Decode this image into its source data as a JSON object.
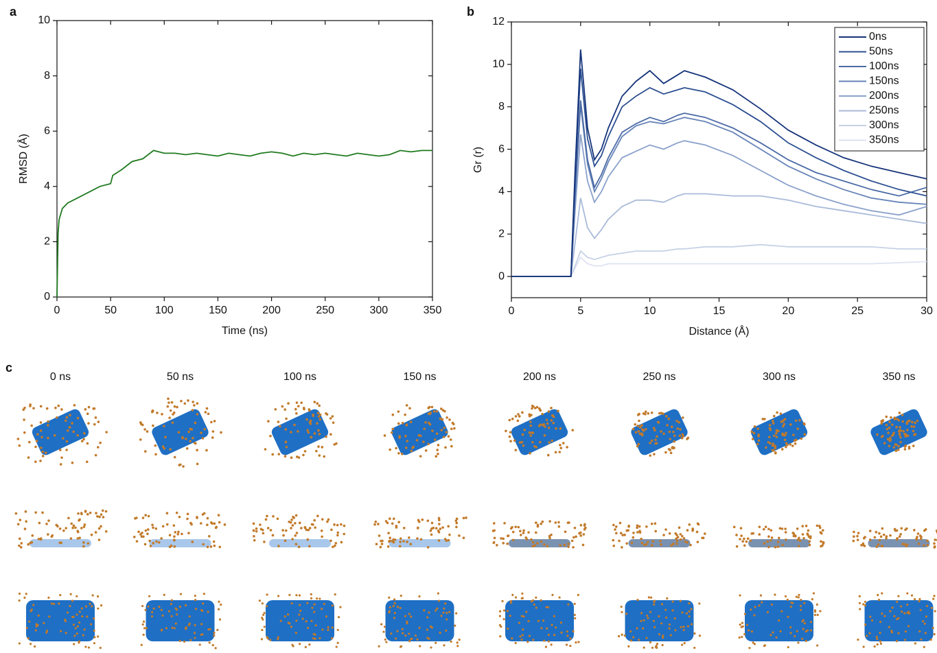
{
  "chart_data": [
    {
      "type": "line",
      "panel_label": "a",
      "x_label": "Time (ns)",
      "y_label": "RMSD (Å)",
      "x": [
        0,
        1,
        2,
        5,
        10,
        20,
        30,
        40,
        50,
        52,
        60,
        70,
        80,
        90,
        100,
        110,
        120,
        130,
        140,
        150,
        160,
        170,
        180,
        190,
        200,
        210,
        220,
        230,
        240,
        250,
        260,
        270,
        280,
        290,
        300,
        310,
        320,
        330,
        340,
        350
      ],
      "values": [
        0,
        2.3,
        2.8,
        3.2,
        3.4,
        3.6,
        3.8,
        4.0,
        4.1,
        4.4,
        4.6,
        4.9,
        5.0,
        5.3,
        5.2,
        5.2,
        5.15,
        5.2,
        5.15,
        5.1,
        5.2,
        5.15,
        5.1,
        5.2,
        5.25,
        5.2,
        5.1,
        5.2,
        5.15,
        5.2,
        5.15,
        5.1,
        5.2,
        5.15,
        5.1,
        5.15,
        5.3,
        5.25,
        5.3,
        5.3
      ],
      "color": "#1f7a1f",
      "xlim": [
        0,
        350
      ],
      "ylim": [
        0,
        10
      ],
      "xticks": [
        0,
        50,
        100,
        150,
        200,
        250,
        300,
        350
      ],
      "yticks": [
        0,
        2,
        4,
        6,
        8,
        10
      ]
    },
    {
      "type": "line",
      "panel_label": "b",
      "x_label": "Distance (Å)",
      "y_label": "Gr (r)",
      "legend": "upper right",
      "x": [
        0,
        4,
        4.3,
        4.6,
        5,
        5.5,
        6,
        6.5,
        7,
        8,
        9,
        10,
        11,
        12,
        12.5,
        14,
        16,
        18,
        20,
        22,
        24,
        26,
        28,
        30
      ],
      "series": [
        {
          "name": "0ns",
          "color": "#15337a",
          "values": [
            0,
            0,
            0,
            5,
            10.7,
            7,
            5.5,
            6,
            7,
            8.5,
            9.2,
            9.7,
            9.1,
            9.5,
            9.7,
            9.4,
            8.8,
            7.9,
            6.9,
            6.2,
            5.6,
            5.2,
            4.9,
            4.6
          ]
        },
        {
          "name": "50ns",
          "color": "#2c4f91",
          "values": [
            0,
            0,
            0,
            4.6,
            9.8,
            6.5,
            5.2,
            5.7,
            6.6,
            8,
            8.5,
            8.9,
            8.6,
            8.8,
            8.9,
            8.7,
            8.1,
            7.3,
            6.3,
            5.6,
            5,
            4.5,
            4.1,
            3.8
          ]
        },
        {
          "name": "100ns",
          "color": "#4a6aa6",
          "values": [
            0,
            0,
            0,
            3.9,
            8.3,
            5.5,
            4.2,
            4.8,
            5.6,
            6.8,
            7.2,
            7.5,
            7.3,
            7.6,
            7.7,
            7.5,
            7,
            6.3,
            5.5,
            4.9,
            4.5,
            4.1,
            3.8,
            4.2
          ]
        },
        {
          "name": "150ns",
          "color": "#6683b8",
          "values": [
            0,
            0,
            0,
            3.8,
            8.1,
            5.3,
            4,
            4.6,
            5.4,
            6.6,
            7.1,
            7.3,
            7.2,
            7.4,
            7.5,
            7.3,
            6.8,
            6,
            5.2,
            4.6,
            4.1,
            3.7,
            3.5,
            3.4
          ]
        },
        {
          "name": "200ns",
          "color": "#8aa1cb",
          "values": [
            0,
            0,
            0,
            3.1,
            6.7,
            4.5,
            3.5,
            4,
            4.7,
            5.6,
            5.9,
            6.2,
            6,
            6.3,
            6.4,
            6.2,
            5.7,
            5,
            4.3,
            3.8,
            3.4,
            3.1,
            2.9,
            3.3
          ]
        },
        {
          "name": "250ns",
          "color": "#a9bad9",
          "values": [
            0,
            0,
            0,
            1.6,
            3.7,
            2.3,
            1.8,
            2.2,
            2.7,
            3.3,
            3.6,
            3.6,
            3.5,
            3.8,
            3.9,
            3.9,
            3.8,
            3.8,
            3.6,
            3.3,
            3.1,
            2.9,
            2.7,
            2.5
          ]
        },
        {
          "name": "300ns",
          "color": "#c6d1e6",
          "values": [
            0,
            0,
            0,
            0.5,
            1.2,
            0.9,
            0.8,
            0.9,
            1,
            1.1,
            1.2,
            1.2,
            1.2,
            1.3,
            1.3,
            1.4,
            1.4,
            1.5,
            1.4,
            1.4,
            1.4,
            1.4,
            1.3,
            1.3
          ]
        },
        {
          "name": "350ns",
          "color": "#dde3f0",
          "values": [
            0,
            0,
            0,
            0.4,
            0.9,
            0.6,
            0.5,
            0.5,
            0.6,
            0.6,
            0.6,
            0.6,
            0.6,
            0.6,
            0.6,
            0.6,
            0.6,
            0.6,
            0.6,
            0.6,
            0.6,
            0.6,
            0.65,
            0.7
          ]
        }
      ],
      "xlim": [
        0,
        30
      ],
      "ylim": [
        -1,
        12
      ],
      "xticks": [
        0,
        5,
        10,
        15,
        20,
        25,
        30
      ],
      "yticks": [
        0,
        2,
        4,
        6,
        8,
        10,
        12
      ]
    }
  ],
  "snapshots": {
    "panel_label": "c",
    "labels": [
      "0 ns",
      "50 ns",
      "100 ns",
      "150 ns",
      "200 ns",
      "250 ns",
      "300 ns",
      "350 ns"
    ]
  }
}
